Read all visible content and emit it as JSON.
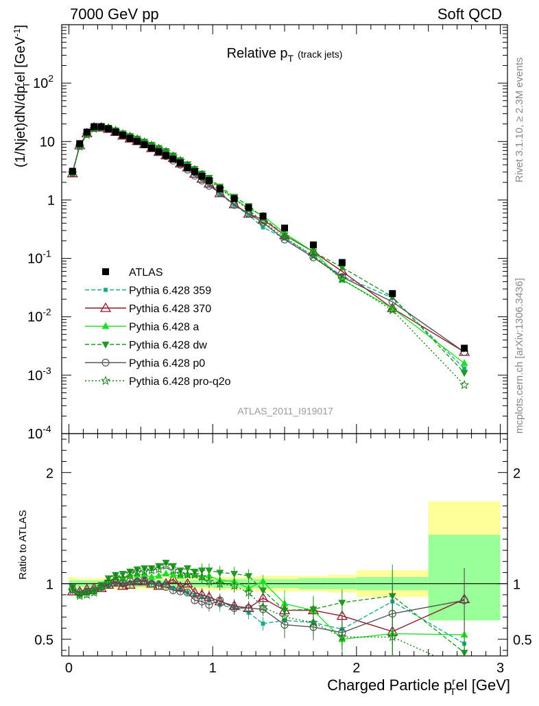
{
  "header": {
    "left_label": "7000 GeV pp",
    "right_label": "Soft QCD"
  },
  "side_labels": {
    "rivet": "Rivet 3.1.10, ≥ 2.3M events",
    "mcplots": "mcplots.cern.ch [arXiv:1306.3436]"
  },
  "colors": {
    "ATLAS": "#000000",
    "359": "#1aaa8c",
    "370": "#8b1a2e",
    "a": "#22dd22",
    "dw": "#229922",
    "p0": "#555555",
    "pro-q2o": "#1a7a1a",
    "band_yellow": "#ffff99",
    "band_green": "#99ff99"
  },
  "chart_data": [
    {
      "type": "line",
      "title": "Relative p",
      "title_sub": "T",
      "title_suffix": "(track jets)",
      "ylabel": "(1/Njet)dN/dp",
      "ylabel_sup": "r",
      "ylabel_sub": "T",
      "ylabel_tail": "el [GeV",
      "ylabel_unit_sup": "-1",
      "ylabel_close": "]",
      "yscale": "log",
      "ylim": [
        0.0001,
        1000
      ],
      "xlim": [
        -0.05,
        3.05
      ],
      "ytick_labels": [
        {
          "base": "10",
          "exp": "-4",
          "v": 0.0001
        },
        {
          "base": "10",
          "exp": "-3",
          "v": 0.001
        },
        {
          "base": "10",
          "exp": "-2",
          "v": 0.01
        },
        {
          "base": "10",
          "exp": "-1",
          "v": 0.1
        },
        {
          "base": "1",
          "exp": "",
          "v": 1
        },
        {
          "base": "10",
          "exp": "",
          "v": 10
        },
        {
          "base": "10",
          "exp": "2",
          "v": 100
        }
      ],
      "watermark": "ATLAS_2011_I919017",
      "x": [
        0.025,
        0.075,
        0.125,
        0.175,
        0.225,
        0.275,
        0.325,
        0.375,
        0.425,
        0.475,
        0.525,
        0.575,
        0.625,
        0.675,
        0.725,
        0.775,
        0.825,
        0.875,
        0.925,
        0.975,
        1.05,
        1.15,
        1.25,
        1.35,
        1.5,
        1.7,
        1.9,
        2.25,
        2.75
      ],
      "series": [
        {
          "name": "ATLAS",
          "key": "ATLAS",
          "marker": "square",
          "dash": "",
          "values": [
            3.1,
            9.2,
            14.5,
            18.0,
            18.0,
            16.5,
            14.5,
            12.8,
            11.3,
            10.0,
            8.8,
            7.7,
            6.7,
            5.8,
            5.0,
            4.3,
            3.6,
            3.05,
            2.55,
            2.15,
            1.55,
            1.05,
            0.74,
            0.53,
            0.33,
            0.17,
            0.085,
            0.025,
            0.0029
          ]
        },
        {
          "name": "Pythia 6.428 359",
          "key": "359",
          "marker": "smallsquare",
          "dash": "6,3",
          "values": [
            2.9,
            8.5,
            13.6,
            17.0,
            17.2,
            16.2,
            14.6,
            12.7,
            11.4,
            10.3,
            9.1,
            7.8,
            6.8,
            5.8,
            4.8,
            4.1,
            3.3,
            2.75,
            2.25,
            1.85,
            1.25,
            0.82,
            0.55,
            0.34,
            0.22,
            0.11,
            0.05,
            0.021,
            0.0013
          ]
        },
        {
          "name": "Pythia 6.428 370",
          "key": "370",
          "marker": "opentriangle",
          "dash": "",
          "values": [
            2.85,
            8.6,
            13.8,
            17.3,
            17.3,
            16.4,
            14.6,
            12.6,
            11.2,
            10.2,
            9.0,
            7.7,
            6.6,
            5.8,
            5.2,
            4.2,
            3.6,
            2.8,
            2.3,
            1.9,
            1.3,
            0.84,
            0.58,
            0.46,
            0.25,
            0.13,
            0.06,
            0.014,
            0.0025
          ]
        },
        {
          "name": "Pythia 6.428 a",
          "key": "a",
          "marker": "triangle",
          "dash": "",
          "values": [
            2.95,
            8.3,
            13.3,
            16.8,
            17.5,
            16.8,
            15.3,
            13.4,
            12.1,
            10.8,
            9.5,
            8.2,
            7.2,
            6.3,
            5.4,
            4.6,
            3.9,
            3.3,
            2.7,
            2.3,
            1.6,
            1.07,
            0.71,
            0.54,
            0.27,
            0.13,
            0.043,
            0.014,
            0.0016
          ]
        },
        {
          "name": "Pythia 6.428 dw",
          "key": "dw",
          "marker": "triangledown",
          "dash": "6,3",
          "values": [
            3.0,
            8.4,
            13.4,
            17.0,
            17.8,
            17.3,
            15.6,
            13.9,
            12.5,
            11.3,
            10.0,
            8.8,
            7.8,
            6.9,
            5.8,
            4.8,
            4.1,
            3.4,
            2.85,
            2.4,
            1.7,
            1.14,
            0.79,
            0.5,
            0.25,
            0.13,
            0.07,
            0.022,
            0.0011
          ]
        },
        {
          "name": "Pythia 6.428 p0",
          "key": "p0",
          "marker": "opencircle",
          "dash": "",
          "values": [
            2.95,
            8.5,
            13.5,
            17.0,
            17.5,
            16.5,
            14.8,
            12.8,
            11.5,
            10.2,
            9.1,
            7.7,
            6.6,
            5.6,
            4.7,
            4.0,
            3.3,
            2.6,
            2.15,
            1.75,
            1.32,
            0.82,
            0.58,
            0.41,
            0.21,
            0.104,
            0.048,
            0.018,
            0.0025
          ]
        },
        {
          "name": "Pythia 6.428 pro-q2o",
          "key": "pro-q2o",
          "marker": "star",
          "dash": "2,3",
          "values": [
            2.9,
            8.2,
            13.0,
            16.5,
            17.4,
            16.8,
            15.4,
            13.5,
            12.3,
            11.0,
            9.8,
            8.6,
            7.6,
            6.7,
            5.6,
            4.7,
            3.9,
            3.3,
            2.7,
            2.2,
            1.55,
            1.03,
            0.68,
            0.42,
            0.23,
            0.11,
            0.044,
            0.013,
            0.00068
          ]
        }
      ],
      "legend_position": "lower-left"
    },
    {
      "type": "line",
      "ylabel": "Ratio to ATLAS",
      "xlabel": "Charged Particle p",
      "xlabel_sup": "r",
      "xlabel_sub": "T",
      "xlabel_tail": "el [GeV]",
      "ylim": [
        0.35,
        2.35
      ],
      "xlim": [
        -0.05,
        3.05
      ],
      "xticks": [
        0,
        1,
        2,
        3
      ],
      "xtick_labels": [
        "0",
        "1",
        "2",
        "3"
      ],
      "yticks": [
        0.5,
        1,
        2
      ],
      "ytick_labels": [
        "0.5",
        "1",
        "2"
      ],
      "bands": {
        "edges": [
          0.0,
          0.05,
          0.1,
          0.15,
          0.2,
          0.25,
          0.3,
          0.35,
          0.4,
          0.45,
          0.5,
          0.55,
          0.6,
          0.65,
          0.7,
          0.75,
          0.8,
          0.85,
          0.9,
          0.95,
          1.0,
          1.1,
          1.2,
          1.3,
          1.4,
          1.6,
          1.8,
          2.0,
          2.5,
          3.0
        ],
        "yellow": [
          0.06,
          0.05,
          0.05,
          0.05,
          0.05,
          0.05,
          0.05,
          0.05,
          0.05,
          0.05,
          0.05,
          0.05,
          0.05,
          0.05,
          0.05,
          0.05,
          0.05,
          0.05,
          0.06,
          0.06,
          0.06,
          0.06,
          0.06,
          0.07,
          0.07,
          0.07,
          0.08,
          0.12,
          0.38
        ],
        "green": [
          0.03,
          0.03,
          0.03,
          0.03,
          0.03,
          0.03,
          0.03,
          0.03,
          0.03,
          0.03,
          0.03,
          0.03,
          0.03,
          0.03,
          0.03,
          0.03,
          0.03,
          0.03,
          0.03,
          0.03,
          0.04,
          0.04,
          0.04,
          0.04,
          0.04,
          0.05,
          0.05,
          0.06,
          0.2
        ],
        "yellow_high_last": 0.74,
        "yellow_low_last": 0.33
      },
      "x": [
        0.025,
        0.075,
        0.125,
        0.175,
        0.225,
        0.275,
        0.325,
        0.375,
        0.425,
        0.475,
        0.525,
        0.575,
        0.625,
        0.675,
        0.725,
        0.775,
        0.825,
        0.875,
        0.925,
        0.975,
        1.05,
        1.15,
        1.25,
        1.35,
        1.5,
        1.7,
        1.9,
        2.25,
        2.75
      ],
      "series": [
        {
          "key": "359",
          "values": [
            0.95,
            0.92,
            0.94,
            0.94,
            0.96,
            0.98,
            1.0,
            0.99,
            1.01,
            1.03,
            1.04,
            1.01,
            1.01,
            1.0,
            0.96,
            0.95,
            0.92,
            0.9,
            0.88,
            0.86,
            0.81,
            0.78,
            0.74,
            0.64,
            0.67,
            0.65,
            0.59,
            0.84,
            0.46
          ]
        },
        {
          "key": "370",
          "values": [
            0.93,
            0.93,
            0.95,
            0.96,
            0.96,
            0.99,
            1.01,
            0.98,
            0.99,
            1.02,
            1.02,
            1.0,
            0.98,
            1.0,
            1.04,
            0.97,
            1.0,
            0.92,
            0.9,
            0.88,
            0.84,
            0.8,
            0.78,
            0.87,
            0.76,
            0.76,
            0.71,
            0.57,
            0.86
          ]
        },
        {
          "key": "a",
          "values": [
            0.95,
            0.9,
            0.92,
            0.93,
            0.97,
            1.02,
            1.06,
            1.05,
            1.07,
            1.08,
            1.08,
            1.06,
            1.07,
            1.09,
            1.08,
            1.07,
            1.08,
            1.08,
            1.06,
            1.07,
            1.03,
            1.02,
            0.96,
            1.02,
            0.82,
            0.76,
            0.5,
            0.55,
            0.54
          ]
        },
        {
          "key": "dw",
          "values": [
            0.97,
            0.91,
            0.92,
            0.94,
            0.99,
            1.05,
            1.08,
            1.09,
            1.11,
            1.13,
            1.14,
            1.14,
            1.16,
            1.19,
            1.16,
            1.12,
            1.14,
            1.11,
            1.12,
            1.12,
            1.1,
            1.09,
            1.07,
            0.94,
            0.76,
            0.77,
            0.83,
            0.89,
            0.38
          ]
        },
        {
          "key": "p0",
          "values": [
            0.95,
            0.92,
            0.93,
            0.94,
            0.97,
            1.0,
            1.02,
            1.0,
            1.02,
            1.02,
            1.03,
            1.0,
            0.98,
            0.97,
            0.94,
            0.93,
            0.92,
            0.85,
            0.84,
            0.81,
            0.85,
            0.78,
            0.78,
            0.77,
            0.63,
            0.61,
            0.56,
            0.73,
            0.85
          ]
        },
        {
          "key": "pro-q2o",
          "values": [
            0.94,
            0.89,
            0.9,
            0.92,
            0.97,
            1.02,
            1.06,
            1.05,
            1.09,
            1.1,
            1.11,
            1.12,
            1.13,
            1.16,
            1.12,
            1.09,
            1.08,
            1.08,
            1.06,
            1.02,
            1.0,
            0.98,
            0.92,
            0.79,
            0.7,
            0.65,
            0.52,
            0.52,
            0.23
          ]
        }
      ]
    }
  ]
}
